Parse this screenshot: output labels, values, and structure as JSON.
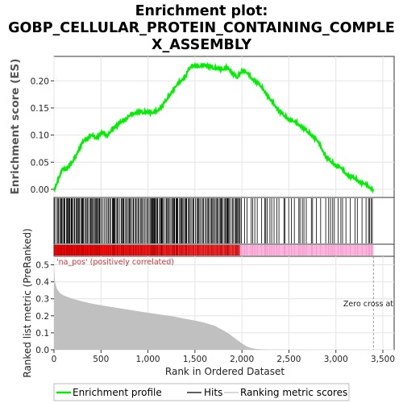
{
  "title_lines": [
    "Enrichment plot:",
    "GOBP_CELLULAR_PROTEIN_CONTAINING_COMPLE",
    "X_ASSEMBLY"
  ],
  "colors": {
    "es_line": "#00ee00",
    "hits": "#000000",
    "metric_fill": "#c0c0c0",
    "positive_strip": "#ff0000",
    "negative_strip": "#ffb3dd",
    "zero_cross": "#999999",
    "annot_red": "#cc3333",
    "frame": "#333333"
  },
  "annotations": {
    "positive": "'na_pos' (positively correlated)",
    "zero_cross": "Zero cross at"
  },
  "legend": [
    {
      "label": "Enrichment profile",
      "color": "#00ee00",
      "style": "thick-line"
    },
    {
      "label": "Hits",
      "color": "#000000",
      "style": "line"
    },
    {
      "label": "Ranking metric scores",
      "color": "#c0c0c0",
      "style": "line"
    }
  ],
  "chart_data": [
    {
      "type": "line",
      "xlabel": "",
      "ylabel": "Enrichment score (ES)",
      "ylim": [
        -0.015,
        0.245
      ],
      "yticks": [
        0.0,
        0.05,
        0.1,
        0.15,
        0.2
      ],
      "ytick_labels": [
        "0.00",
        "0.05",
        "0.10",
        "0.15",
        "0.20"
      ],
      "xlim": [
        0,
        3620
      ],
      "series": [
        {
          "name": "Enrichment profile",
          "x": [
            0,
            30,
            60,
            90,
            120,
            160,
            200,
            240,
            280,
            320,
            360,
            400,
            440,
            480,
            520,
            560,
            600,
            640,
            680,
            720,
            760,
            800,
            850,
            900,
            950,
            1000,
            1050,
            1100,
            1150,
            1200,
            1250,
            1300,
            1350,
            1400,
            1450,
            1500,
            1550,
            1600,
            1650,
            1700,
            1750,
            1800,
            1850,
            1900,
            1950,
            2000,
            2050,
            2100,
            2150,
            2200,
            2250,
            2300,
            2350,
            2400,
            2450,
            2500,
            2550,
            2600,
            2650,
            2700,
            2750,
            2800,
            2850,
            2900,
            2950,
            3000,
            3050,
            3100,
            3150,
            3200,
            3250,
            3300,
            3350,
            3400
          ],
          "values": [
            0.0,
            0.01,
            0.025,
            0.04,
            0.035,
            0.045,
            0.05,
            0.065,
            0.08,
            0.09,
            0.095,
            0.1,
            0.095,
            0.1,
            0.105,
            0.1,
            0.105,
            0.115,
            0.12,
            0.125,
            0.13,
            0.135,
            0.14,
            0.145,
            0.14,
            0.145,
            0.14,
            0.145,
            0.155,
            0.165,
            0.18,
            0.19,
            0.2,
            0.21,
            0.225,
            0.23,
            0.225,
            0.23,
            0.228,
            0.222,
            0.225,
            0.22,
            0.225,
            0.215,
            0.205,
            0.22,
            0.215,
            0.205,
            0.2,
            0.19,
            0.18,
            0.165,
            0.155,
            0.145,
            0.135,
            0.13,
            0.125,
            0.12,
            0.115,
            0.105,
            0.1,
            0.09,
            0.075,
            0.06,
            0.05,
            0.045,
            0.04,
            0.03,
            0.025,
            0.02,
            0.015,
            0.01,
            0.005,
            0.0
          ]
        }
      ]
    },
    {
      "type": "area",
      "xlabel": "Rank in Ordered Dataset",
      "ylabel": "Ranked list metric (PreRanked)",
      "ylim": [
        0,
        0.55
      ],
      "yticks": [
        0.0,
        0.1,
        0.2,
        0.3,
        0.4,
        0.5
      ],
      "ytick_labels": [
        "0.0",
        "0.1",
        "0.2",
        "0.3",
        "0.4",
        "0.5"
      ],
      "xlim": [
        0,
        3620
      ],
      "xticks": [
        0,
        500,
        1000,
        1500,
        2000,
        2500,
        3000,
        3500
      ],
      "xtick_labels": [
        "0",
        "500",
        "1,000",
        "1,500",
        "2,000",
        "2,500",
        "3,000",
        "3,500"
      ],
      "zero_cross_x": 3400,
      "series": [
        {
          "name": "Ranking metric scores",
          "x": [
            0,
            10,
            30,
            60,
            100,
            150,
            200,
            300,
            400,
            500,
            600,
            700,
            800,
            900,
            1000,
            1100,
            1200,
            1300,
            1400,
            1500,
            1600,
            1700,
            1750,
            1800,
            1850,
            1900,
            1950,
            2000,
            2050,
            2100,
            2150,
            2200,
            2300,
            2500,
            3000,
            3400
          ],
          "values": [
            0.5,
            0.4,
            0.36,
            0.335,
            0.32,
            0.31,
            0.3,
            0.285,
            0.272,
            0.262,
            0.253,
            0.244,
            0.235,
            0.226,
            0.218,
            0.21,
            0.202,
            0.193,
            0.182,
            0.172,
            0.16,
            0.143,
            0.13,
            0.115,
            0.098,
            0.078,
            0.058,
            0.038,
            0.02,
            0.01,
            0.005,
            0.003,
            0.002,
            0.001,
            0.0005,
            0.0
          ]
        }
      ],
      "positive_region_end": 1980
    }
  ],
  "hits_seed_info": "Hit ranks are dense over 0-1980 and sparser after"
}
